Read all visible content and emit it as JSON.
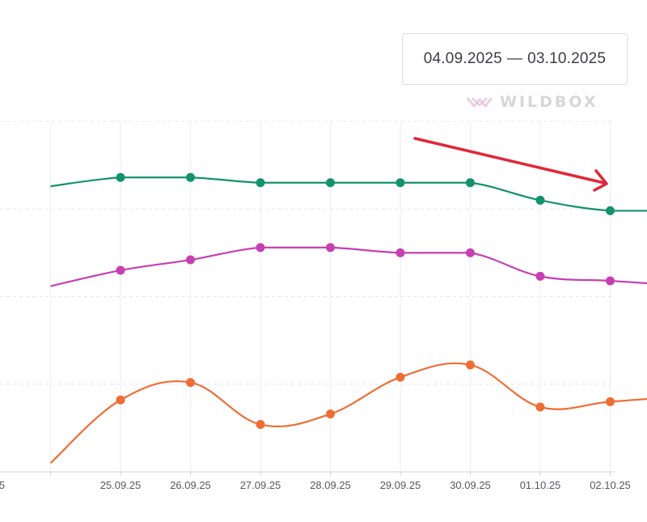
{
  "date_range": {
    "start": "04.09.2025",
    "end": "03.10.2025",
    "separator": "—"
  },
  "watermark": {
    "text": "WILDBOX"
  },
  "annotation": {
    "type": "arrow",
    "color": "#e0283a",
    "meaning": "downward trend"
  },
  "chart_data": {
    "type": "line",
    "title": "",
    "xlabel": "",
    "ylabel": "",
    "grid": true,
    "categories": [
      "24.09.25",
      "25.09.25",
      "26.09.25",
      "27.09.25",
      "28.09.25",
      "29.09.25",
      "30.09.25",
      "01.10.25",
      "02.10.25",
      "03.10.25"
    ],
    "partial_first_label": "25",
    "ylim": [
      0,
      100
    ],
    "series": [
      {
        "name": "green",
        "color": "#13936b",
        "values": [
          81.5,
          84.0,
          84.0,
          82.5,
          82.5,
          82.5,
          82.5,
          77.5,
          74.5,
          74.5
        ]
      },
      {
        "name": "magenta",
        "color": "#c73fb2",
        "values": [
          53.0,
          57.5,
          60.5,
          64.0,
          64.0,
          62.5,
          62.5,
          55.8,
          54.5,
          53.2
        ]
      },
      {
        "name": "orange",
        "color": "#ef6d34",
        "values": [
          2.5,
          20.5,
          25.5,
          13.5,
          16.5,
          27.0,
          30.5,
          18.5,
          20.0,
          21.5
        ]
      }
    ]
  }
}
